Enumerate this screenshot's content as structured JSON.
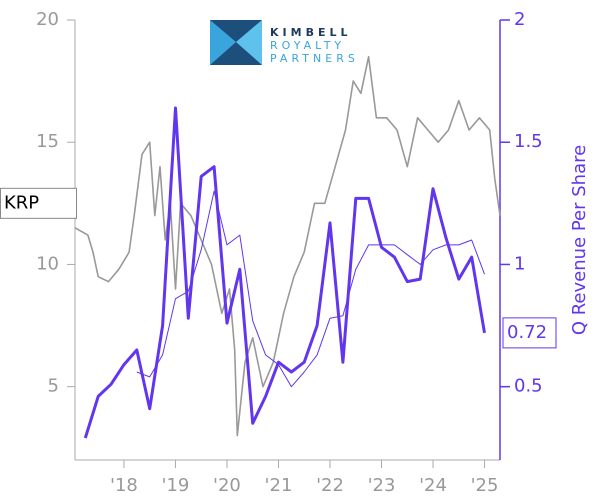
{
  "chart_data": {
    "type": "line",
    "logo_text": [
      "KIMBELL",
      "ROYALTY",
      "PARTNERS"
    ],
    "y2label": "Q Revenue Per Share",
    "xlim": [
      2017.05,
      2025.3
    ],
    "xticks": [
      {
        "value": 2018,
        "label": "'18"
      },
      {
        "value": 2019,
        "label": "'19"
      },
      {
        "value": 2020,
        "label": "'20"
      },
      {
        "value": 2021,
        "label": "'21"
      },
      {
        "value": 2022,
        "label": "'22"
      },
      {
        "value": 2023,
        "label": "'23"
      },
      {
        "value": 2024,
        "label": "'24"
      },
      {
        "value": 2025,
        "label": "'25"
      }
    ],
    "ylim": [
      2,
      20
    ],
    "yticks": [
      5,
      10,
      15,
      20
    ],
    "y2lim": [
      0.2,
      2.0
    ],
    "y2ticks": [
      0.5,
      1.0,
      1.5,
      2.0
    ],
    "price_tag": {
      "label": "KRP",
      "value": 12.5
    },
    "series": [
      {
        "axis": "y",
        "color": "#999999",
        "width": 1.6,
        "x": [
          2017.05,
          2017.3,
          2017.4,
          2017.5,
          2017.7,
          2017.9,
          2018.1,
          2018.2,
          2018.35,
          2018.5,
          2018.6,
          2018.7,
          2018.8,
          2018.9,
          2019.0,
          2019.1,
          2019.3,
          2019.5,
          2019.7,
          2019.9,
          2020.05,
          2020.15,
          2020.2,
          2020.35,
          2020.5,
          2020.7,
          2020.9,
          2021.1,
          2021.3,
          2021.5,
          2021.7,
          2021.9,
          2022.1,
          2022.3,
          2022.45,
          2022.6,
          2022.75,
          2022.9,
          2023.1,
          2023.3,
          2023.5,
          2023.7,
          2023.9,
          2024.1,
          2024.3,
          2024.5,
          2024.7,
          2024.9,
          2025.1,
          2025.2,
          2025.3
        ],
        "values": [
          11.5,
          11.2,
          10.5,
          9.5,
          9.3,
          9.8,
          10.5,
          12,
          14.5,
          15,
          12,
          14,
          11,
          12.5,
          9,
          12.5,
          12,
          11,
          10,
          8,
          9,
          6.5,
          3,
          6,
          7,
          5,
          6,
          8,
          9.5,
          10.5,
          12.5,
          12.5,
          14,
          15.5,
          17.5,
          17,
          18.5,
          16,
          16,
          15.5,
          14,
          16,
          15.5,
          15,
          15.5,
          16.7,
          15.5,
          16,
          15.5,
          13.5,
          12
        ]
      },
      {
        "axis": "y2",
        "color": "#6236ee",
        "width": 3,
        "x": [
          2017.25,
          2017.5,
          2017.75,
          2018.0,
          2018.25,
          2018.5,
          2018.75,
          2019.0,
          2019.25,
          2019.5,
          2019.75,
          2020.0,
          2020.25,
          2020.5,
          2020.75,
          2021.0,
          2021.25,
          2021.5,
          2021.75,
          2022.0,
          2022.25,
          2022.5,
          2022.75,
          2023.0,
          2023.25,
          2023.5,
          2023.75,
          2024.0,
          2024.25,
          2024.5,
          2024.75,
          2025.0
        ],
        "values": [
          0.29,
          0.46,
          0.51,
          0.59,
          0.65,
          0.41,
          0.75,
          1.64,
          0.78,
          1.36,
          1.4,
          0.76,
          0.98,
          0.35,
          0.46,
          0.6,
          0.56,
          0.6,
          0.75,
          1.17,
          0.6,
          1.27,
          1.27,
          1.07,
          1.03,
          0.93,
          0.94,
          1.31,
          1.11,
          0.94,
          1.03,
          0.72
        ]
      },
      {
        "axis": "y2",
        "color": "#6236ee",
        "width": 1,
        "x": [
          2018.25,
          2018.5,
          2018.75,
          2019.0,
          2019.25,
          2019.5,
          2019.75,
          2020.0,
          2020.25,
          2020.5,
          2020.75,
          2021.0,
          2021.25,
          2021.5,
          2021.75,
          2022.0,
          2022.25,
          2022.5,
          2022.75,
          2023.0,
          2023.25,
          2023.5,
          2023.75,
          2024.0,
          2024.25,
          2024.5,
          2024.75,
          2025.0
        ],
        "values": [
          0.56,
          0.54,
          0.63,
          0.86,
          0.89,
          1.06,
          1.3,
          1.08,
          1.12,
          0.77,
          0.63,
          0.59,
          0.5,
          0.56,
          0.63,
          0.78,
          0.79,
          0.98,
          1.08,
          1.08,
          1.08,
          1.04,
          1.0,
          1.06,
          1.08,
          1.08,
          1.1,
          0.96
        ]
      }
    ]
  }
}
